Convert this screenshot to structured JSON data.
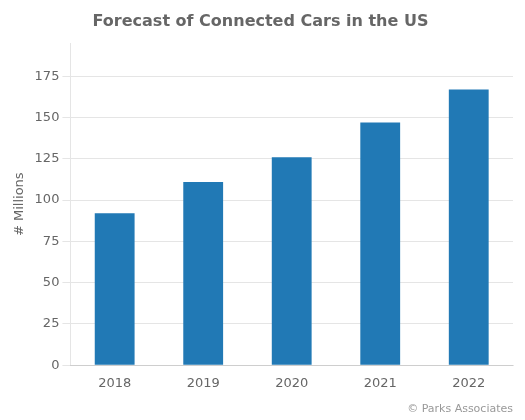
{
  "chart_data": {
    "type": "bar",
    "title": "Forecast of Connected Cars in the US",
    "categories": [
      "2018",
      "2019",
      "2020",
      "2021",
      "2022"
    ],
    "values": [
      92,
      111,
      126,
      147,
      167
    ],
    "color": "#2179b5",
    "ylabel": "# Millions",
    "ylim": [
      0,
      195
    ],
    "yticks": [
      0,
      25,
      50,
      75,
      100,
      125,
      150,
      175
    ],
    "grid": true,
    "annotations": [
      "© Parks Associates"
    ]
  }
}
